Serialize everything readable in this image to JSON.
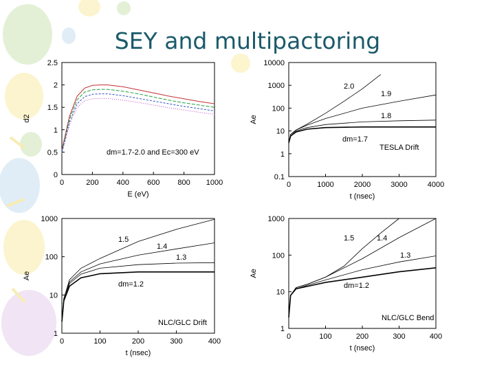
{
  "slide_title": "SEY and multipactoring",
  "chart_data": [
    {
      "type": "line",
      "xlabel": "E (eV)",
      "ylabel": "d2",
      "xlim": [
        0,
        1000
      ],
      "ylim": [
        0,
        2.5
      ],
      "xticks": [
        "0",
        "200",
        "400",
        "600",
        "800",
        "1000"
      ],
      "yticks": [
        "0",
        "0.5",
        "1",
        "1.5",
        "2",
        "2.5"
      ],
      "annotations": [
        "dm=1.7-2.0 and Ec=300 eV"
      ],
      "series": [
        {
          "color": "#c03030",
          "x": [
            0,
            50,
            100,
            150,
            200,
            250,
            300,
            400,
            500,
            600,
            700,
            800,
            900,
            1000
          ],
          "y": [
            0.55,
            1.3,
            1.75,
            1.93,
            1.99,
            2.0,
            2.0,
            1.96,
            1.89,
            1.82,
            1.75,
            1.69,
            1.63,
            1.58
          ]
        },
        {
          "color": "#20a040",
          "x": [
            0,
            50,
            100,
            150,
            200,
            250,
            300,
            400,
            500,
            600,
            700,
            800,
            900,
            1000
          ],
          "y": [
            0.52,
            1.24,
            1.67,
            1.84,
            1.89,
            1.9,
            1.9,
            1.86,
            1.8,
            1.73,
            1.66,
            1.6,
            1.55,
            1.5
          ]
        },
        {
          "color": "#3050c0",
          "x": [
            0,
            50,
            100,
            150,
            200,
            250,
            300,
            400,
            500,
            600,
            700,
            800,
            900,
            1000
          ],
          "y": [
            0.5,
            1.17,
            1.58,
            1.74,
            1.79,
            1.8,
            1.8,
            1.76,
            1.7,
            1.64,
            1.58,
            1.52,
            1.47,
            1.42
          ]
        },
        {
          "color": "#c040c0",
          "x": [
            0,
            50,
            100,
            150,
            200,
            250,
            300,
            400,
            500,
            600,
            700,
            800,
            900,
            1000
          ],
          "y": [
            0.47,
            1.11,
            1.5,
            1.65,
            1.69,
            1.7,
            1.7,
            1.66,
            1.61,
            1.55,
            1.49,
            1.44,
            1.39,
            1.34
          ]
        }
      ]
    },
    {
      "type": "line",
      "xlabel": "t (nsec)",
      "ylabel": "Ae",
      "xlim": [
        0,
        4000
      ],
      "ylim": [
        0.1,
        10000
      ],
      "yscale": "log",
      "xticks": [
        "0",
        "1000",
        "2000",
        "3000",
        "4000"
      ],
      "yticks": [
        "0.1",
        "1",
        "10",
        "100",
        "1000",
        "10000"
      ],
      "annotations": [
        "TESLA Drift"
      ],
      "series": [
        {
          "name": "2.0",
          "x": [
            0,
            50,
            200,
            500,
            1000,
            1500,
            2000,
            2500
          ],
          "y": [
            3,
            7,
            11,
            20,
            60,
            200,
            700,
            3000
          ]
        },
        {
          "name": "1.9",
          "x": [
            0,
            50,
            200,
            500,
            1000,
            2000,
            3000,
            4000
          ],
          "y": [
            3,
            7,
            11,
            18,
            35,
            100,
            200,
            380
          ]
        },
        {
          "name": "1.8",
          "x": [
            0,
            50,
            200,
            500,
            1000,
            2000,
            3000,
            4000
          ],
          "y": [
            3,
            7,
            10,
            14,
            19,
            25,
            28,
            30
          ]
        },
        {
          "name": "dm=1.7",
          "x": [
            0,
            50,
            200,
            500,
            1000,
            2000,
            3000,
            4000
          ],
          "y": [
            3,
            6,
            9,
            12,
            14,
            15,
            15,
            15
          ]
        }
      ]
    },
    {
      "type": "line",
      "xlabel": "t (nsec)",
      "ylabel": "Ae",
      "xlim": [
        0,
        400
      ],
      "ylim": [
        1,
        1000
      ],
      "yscale": "log",
      "xticks": [
        "0",
        "100",
        "200",
        "300",
        "400"
      ],
      "yticks": [
        "1",
        "10",
        "100",
        "1000"
      ],
      "annotations": [
        "NLC/GLC Drift"
      ],
      "series": [
        {
          "name": "1.5",
          "x": [
            0,
            5,
            20,
            50,
            100,
            200,
            300,
            400
          ],
          "y": [
            2,
            8,
            25,
            50,
            90,
            250,
            520,
            950
          ]
        },
        {
          "name": "1.4",
          "x": [
            0,
            5,
            20,
            50,
            100,
            200,
            300,
            400
          ],
          "y": [
            2,
            8,
            22,
            40,
            65,
            110,
            160,
            230
          ]
        },
        {
          "name": "1.3",
          "x": [
            0,
            5,
            20,
            50,
            100,
            200,
            300,
            400
          ],
          "y": [
            2,
            7,
            20,
            35,
            50,
            62,
            68,
            70
          ]
        },
        {
          "name": "dm=1.2",
          "x": [
            0,
            5,
            20,
            50,
            100,
            200,
            300,
            400
          ],
          "y": [
            2,
            7,
            17,
            28,
            36,
            40,
            40,
            40
          ]
        }
      ]
    },
    {
      "type": "line",
      "xlabel": "t (nsec)",
      "ylabel": "Ae",
      "xlim": [
        0,
        400
      ],
      "ylim": [
        1,
        1000
      ],
      "yscale": "log",
      "xticks": [
        "0",
        "100",
        "200",
        "300",
        "400"
      ],
      "yticks": [
        "1",
        "10",
        "100",
        "1000"
      ],
      "annotations": [
        "NLC/GLC Bend"
      ],
      "series": [
        {
          "name": "1.5",
          "x": [
            0,
            5,
            20,
            50,
            100,
            150,
            200,
            250,
            300
          ],
          "y": [
            2,
            8,
            13,
            16,
            25,
            50,
            150,
            400,
            1000
          ]
        },
        {
          "name": "1.4",
          "x": [
            0,
            5,
            20,
            50,
            100,
            200,
            300,
            400
          ],
          "y": [
            2,
            8,
            13,
            16,
            25,
            80,
            300,
            1000
          ]
        },
        {
          "name": "1.3",
          "x": [
            0,
            5,
            20,
            50,
            100,
            200,
            300,
            400
          ],
          "y": [
            2,
            8,
            12,
            15,
            21,
            40,
            65,
            95
          ]
        },
        {
          "name": "dm=1.2",
          "x": [
            0,
            5,
            20,
            50,
            100,
            200,
            300,
            400
          ],
          "y": [
            2,
            8,
            12,
            14,
            18,
            25,
            35,
            45
          ]
        }
      ]
    }
  ]
}
